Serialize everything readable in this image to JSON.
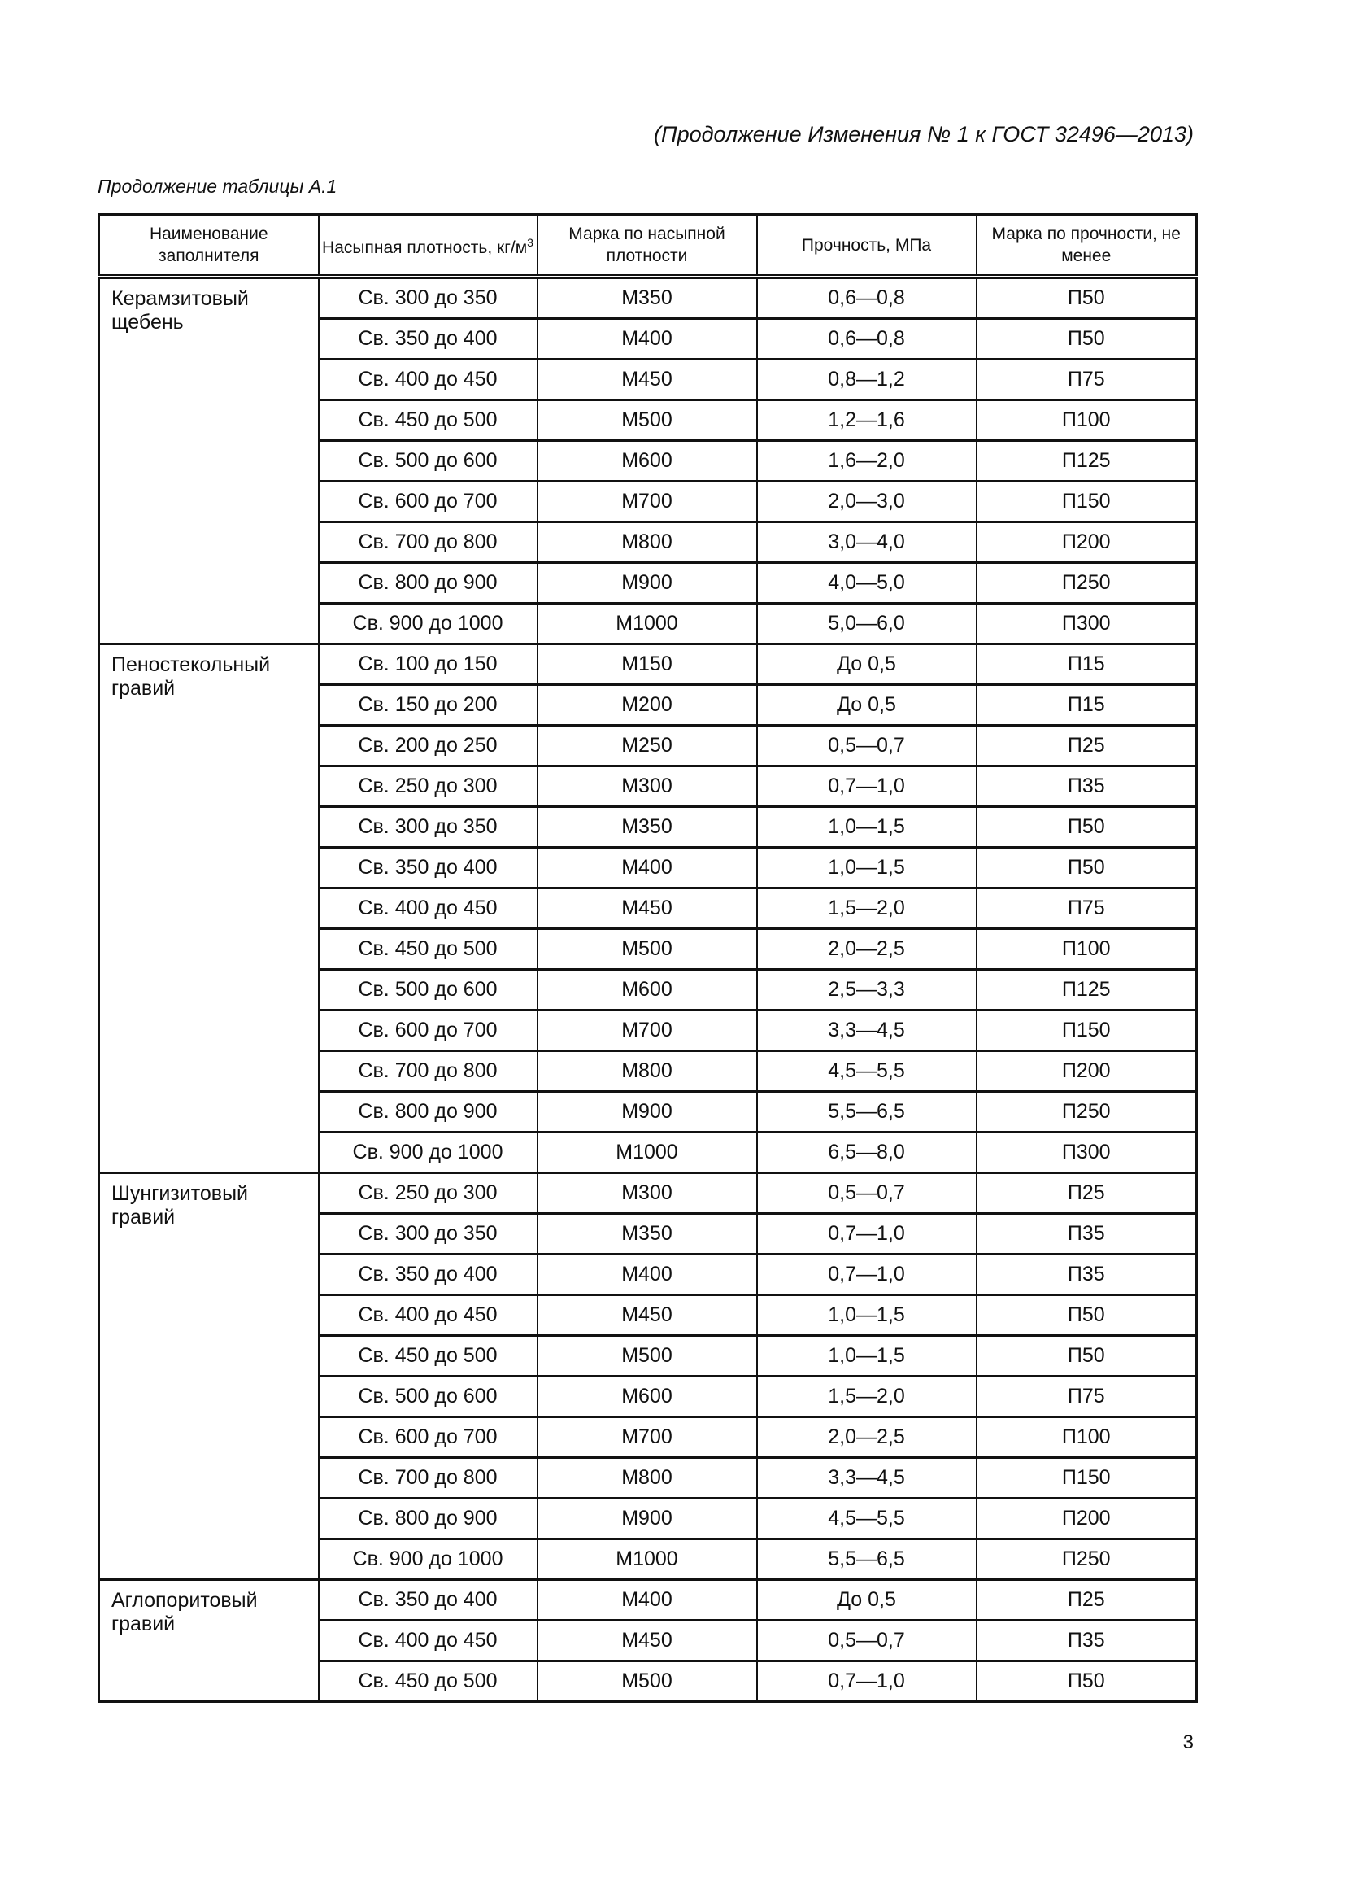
{
  "header": "(Продолжение Изменения № 1 к ГОСТ 32496—2013)",
  "subtitle": "Продолжение таблицы А.1",
  "columns": [
    "Наименование заполнителя",
    "Насыпная плотность, кг/м",
    "Марка по насыпной плотности",
    "Прочность, МПа",
    "Марка по прочности, не менее"
  ],
  "density_unit_sup": "3",
  "groups": [
    {
      "name": "Керамзитовый щебень",
      "rows": [
        [
          "Св. 300 до 350",
          "М350",
          "0,6—0,8",
          "П50"
        ],
        [
          "Св. 350 до 400",
          "М400",
          "0,6—0,8",
          "П50"
        ],
        [
          "Св. 400 до 450",
          "М450",
          "0,8—1,2",
          "П75"
        ],
        [
          "Св. 450 до 500",
          "М500",
          "1,2—1,6",
          "П100"
        ],
        [
          "Св. 500 до 600",
          "М600",
          "1,6—2,0",
          "П125"
        ],
        [
          "Св. 600 до 700",
          "М700",
          "2,0—3,0",
          "П150"
        ],
        [
          "Св. 700 до 800",
          "М800",
          "3,0—4,0",
          "П200"
        ],
        [
          "Св. 800 до 900",
          "М900",
          "4,0—5,0",
          "П250"
        ],
        [
          "Св. 900 до 1000",
          "М1000",
          "5,0—6,0",
          "П300"
        ]
      ]
    },
    {
      "name": "Пеностекольный гравий",
      "rows": [
        [
          "Св. 100 до 150",
          "М150",
          "До 0,5",
          "П15"
        ],
        [
          "Св. 150 до 200",
          "М200",
          "До 0,5",
          "П15"
        ],
        [
          "Св. 200 до 250",
          "М250",
          "0,5—0,7",
          "П25"
        ],
        [
          "Св. 250 до 300",
          "М300",
          "0,7—1,0",
          "П35"
        ],
        [
          "Св. 300 до 350",
          "М350",
          "1,0—1,5",
          "П50"
        ],
        [
          "Св. 350 до 400",
          "М400",
          "1,0—1,5",
          "П50"
        ],
        [
          "Св. 400 до 450",
          "М450",
          "1,5—2,0",
          "П75"
        ],
        [
          "Св. 450 до 500",
          "М500",
          "2,0—2,5",
          "П100"
        ],
        [
          "Св. 500 до 600",
          "М600",
          "2,5—3,3",
          "П125"
        ],
        [
          "Св. 600 до 700",
          "М700",
          "3,3—4,5",
          "П150"
        ],
        [
          "Св. 700 до 800",
          "М800",
          "4,5—5,5",
          "П200"
        ],
        [
          "Св. 800 до 900",
          "М900",
          "5,5—6,5",
          "П250"
        ],
        [
          "Св. 900 до 1000",
          "М1000",
          "6,5—8,0",
          "П300"
        ]
      ]
    },
    {
      "name": "Шунгизитовый гравий",
      "rows": [
        [
          "Св. 250 до 300",
          "М300",
          "0,5—0,7",
          "П25"
        ],
        [
          "Св. 300 до 350",
          "М350",
          "0,7—1,0",
          "П35"
        ],
        [
          "Св. 350 до 400",
          "М400",
          "0,7—1,0",
          "П35"
        ],
        [
          "Св. 400 до 450",
          "М450",
          "1,0—1,5",
          "П50"
        ],
        [
          "Св. 450 до 500",
          "М500",
          "1,0—1,5",
          "П50"
        ],
        [
          "Св. 500 до 600",
          "М600",
          "1,5—2,0",
          "П75"
        ],
        [
          "Св. 600 до 700",
          "М700",
          "2,0—2,5",
          "П100"
        ],
        [
          "Св. 700 до 800",
          "М800",
          "3,3—4,5",
          "П150"
        ],
        [
          "Св. 800 до 900",
          "М900",
          "4,5—5,5",
          "П200"
        ],
        [
          "Св. 900 до 1000",
          "М1000",
          "5,5—6,5",
          "П250"
        ]
      ]
    },
    {
      "name": "Аглопоритовый гравий",
      "rows": [
        [
          "Св. 350 до 400",
          "М400",
          "До 0,5",
          "П25"
        ],
        [
          "Св. 400 до 450",
          "М450",
          "0,5—0,7",
          "П35"
        ],
        [
          "Св. 450 до 500",
          "М500",
          "0,7—1,0",
          "П50"
        ]
      ]
    }
  ],
  "page_number": "3"
}
